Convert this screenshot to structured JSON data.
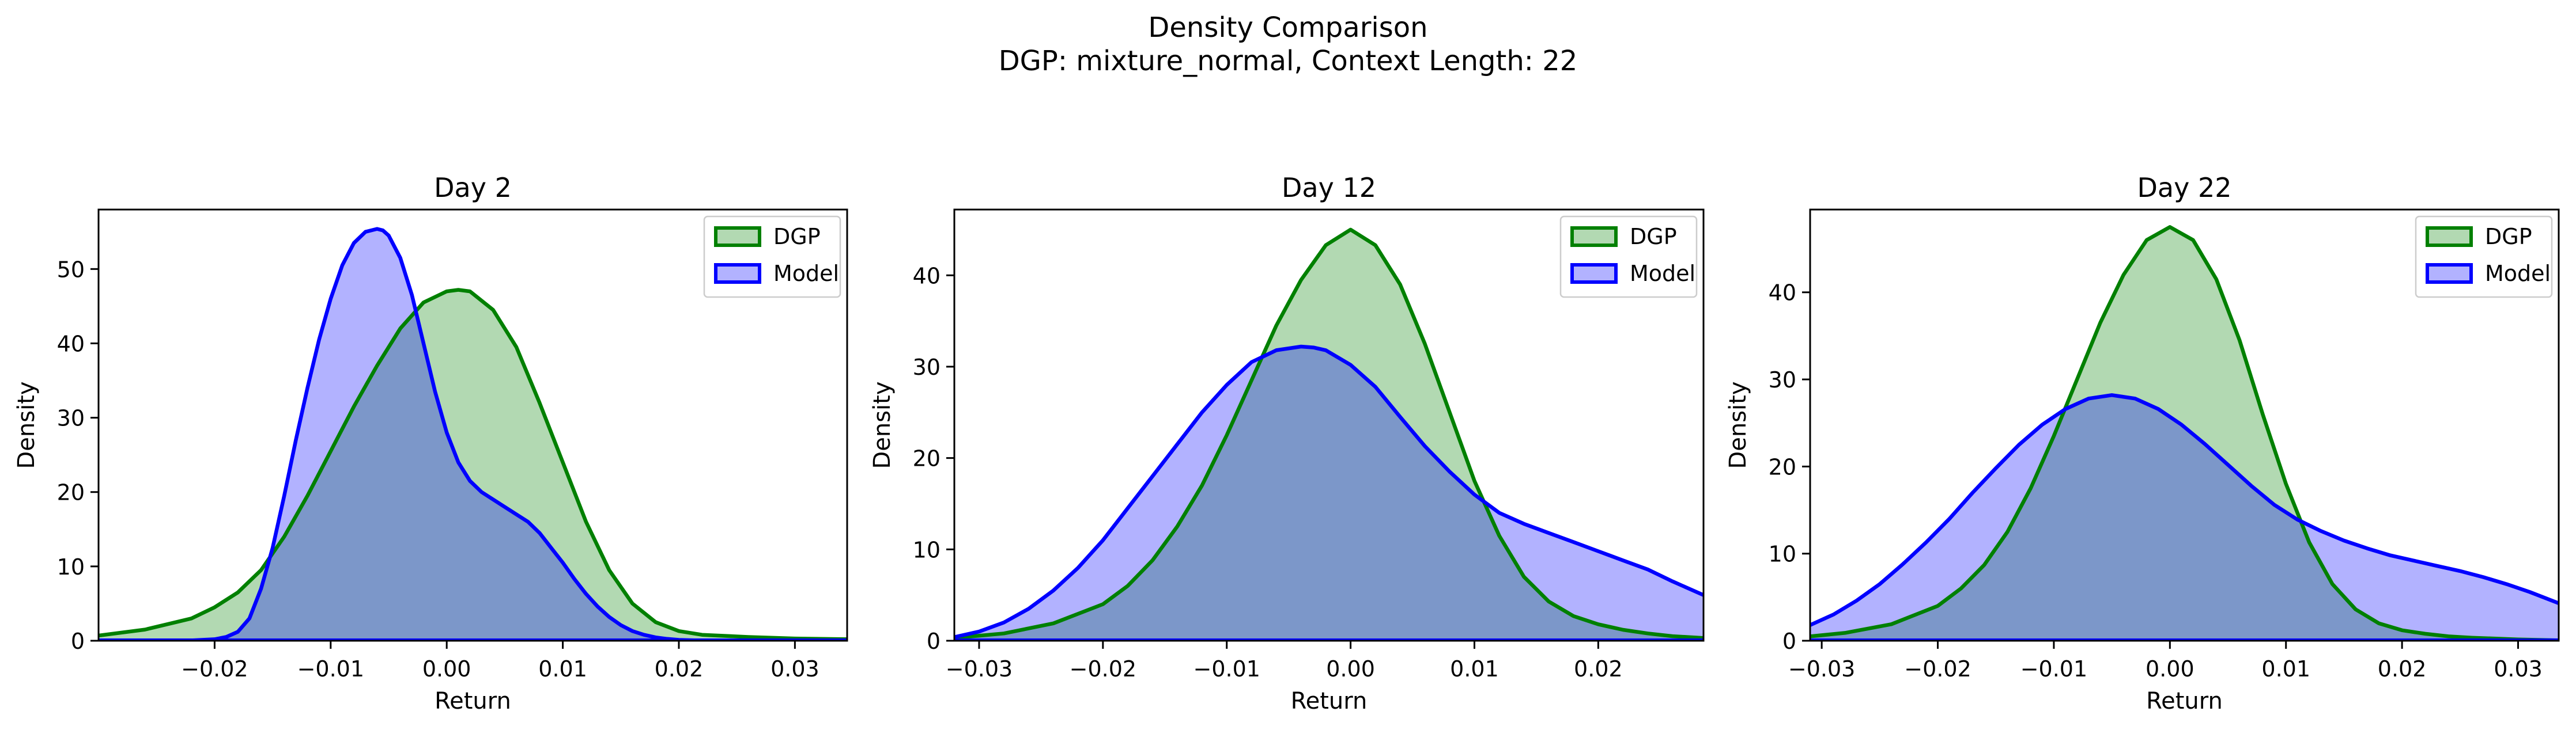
{
  "figure": {
    "title_line1": "Density Comparison",
    "title_line2": "DGP: mixture_normal, Context Length: 22"
  },
  "colors": {
    "dgp_line": "#008000",
    "dgp_fill": "#008000",
    "model_line": "#0000ff",
    "model_fill": "#0000ff"
  },
  "chart_data": [
    {
      "type": "area",
      "title": "Day 2",
      "xlabel": "Return",
      "ylabel": "Density",
      "xlim": [
        -0.03,
        0.0345
      ],
      "ylim": [
        0,
        58
      ],
      "xticks": [
        -0.02,
        -0.01,
        0.0,
        0.01,
        0.02,
        0.03
      ],
      "xtick_labels": [
        "−0.02",
        "−0.01",
        "0.00",
        "0.01",
        "0.02",
        "0.03"
      ],
      "yticks": [
        0,
        10,
        20,
        30,
        40,
        50
      ],
      "grid": false,
      "legend": "upper right",
      "series": [
        {
          "name": "DGP",
          "x": [
            -0.03,
            -0.026,
            -0.022,
            -0.02,
            -0.018,
            -0.016,
            -0.014,
            -0.012,
            -0.01,
            -0.008,
            -0.006,
            -0.004,
            -0.002,
            0.0,
            0.001,
            0.002,
            0.004,
            0.006,
            0.008,
            0.01,
            0.012,
            0.014,
            0.016,
            0.018,
            0.02,
            0.022,
            0.026,
            0.03,
            0.0345
          ],
          "y": [
            0.7,
            1.5,
            3.0,
            4.5,
            6.5,
            9.5,
            14.0,
            19.5,
            25.5,
            31.5,
            37.0,
            42.0,
            45.5,
            47.0,
            47.2,
            47.0,
            44.5,
            39.5,
            32.0,
            24.0,
            16.0,
            9.5,
            5.0,
            2.5,
            1.3,
            0.8,
            0.5,
            0.3,
            0.2
          ]
        },
        {
          "name": "Model",
          "x": [
            -0.03,
            -0.022,
            -0.02,
            -0.019,
            -0.018,
            -0.017,
            -0.016,
            -0.015,
            -0.014,
            -0.013,
            -0.012,
            -0.011,
            -0.01,
            -0.009,
            -0.008,
            -0.007,
            -0.006,
            -0.0055,
            -0.005,
            -0.004,
            -0.003,
            -0.002,
            -0.001,
            0.0,
            0.001,
            0.002,
            0.003,
            0.004,
            0.005,
            0.006,
            0.007,
            0.008,
            0.009,
            0.01,
            0.011,
            0.012,
            0.013,
            0.014,
            0.015,
            0.016,
            0.017,
            0.018,
            0.019,
            0.02,
            0.022,
            0.026,
            0.03,
            0.0345
          ],
          "y": [
            0,
            0.05,
            0.2,
            0.5,
            1.2,
            3.0,
            7.0,
            12.5,
            19.5,
            27.0,
            34.0,
            40.5,
            46.0,
            50.5,
            53.5,
            55.0,
            55.4,
            55.2,
            54.5,
            51.5,
            46.5,
            40.0,
            33.5,
            28.0,
            24.0,
            21.5,
            20.0,
            19.0,
            18.0,
            17.0,
            16.0,
            14.5,
            12.5,
            10.5,
            8.3,
            6.3,
            4.6,
            3.2,
            2.1,
            1.3,
            0.8,
            0.45,
            0.25,
            0.12,
            0.03,
            0,
            0,
            0
          ]
        }
      ]
    },
    {
      "type": "area",
      "title": "Day 12",
      "xlabel": "Return",
      "ylabel": "Density",
      "xlim": [
        -0.032,
        0.0285
      ],
      "ylim": [
        0,
        47.2
      ],
      "xticks": [
        -0.03,
        -0.02,
        -0.01,
        0.0,
        0.01,
        0.02
      ],
      "xtick_labels": [
        "−0.03",
        "−0.02",
        "−0.01",
        "0.00",
        "0.01",
        "0.02"
      ],
      "yticks": [
        0,
        10,
        20,
        30,
        40
      ],
      "grid": false,
      "legend": "upper right",
      "series": [
        {
          "name": "DGP",
          "x": [
            -0.032,
            -0.028,
            -0.024,
            -0.02,
            -0.018,
            -0.016,
            -0.014,
            -0.012,
            -0.01,
            -0.008,
            -0.006,
            -0.004,
            -0.002,
            0.0,
            0.002,
            0.004,
            0.006,
            0.008,
            0.01,
            0.012,
            0.014,
            0.016,
            0.018,
            0.02,
            0.022,
            0.024,
            0.026,
            0.0285
          ],
          "y": [
            0.3,
            0.8,
            1.9,
            4.0,
            6.0,
            8.8,
            12.5,
            17.0,
            22.5,
            28.5,
            34.5,
            39.5,
            43.3,
            45.0,
            43.3,
            39.0,
            32.5,
            25.0,
            17.5,
            11.5,
            7.0,
            4.3,
            2.7,
            1.8,
            1.2,
            0.8,
            0.5,
            0.3
          ]
        },
        {
          "name": "Model",
          "x": [
            -0.032,
            -0.03,
            -0.028,
            -0.026,
            -0.024,
            -0.022,
            -0.02,
            -0.018,
            -0.016,
            -0.014,
            -0.012,
            -0.01,
            -0.008,
            -0.006,
            -0.004,
            -0.003,
            -0.002,
            0.0,
            0.002,
            0.004,
            0.006,
            0.008,
            0.01,
            0.012,
            0.014,
            0.016,
            0.018,
            0.02,
            0.022,
            0.024,
            0.026,
            0.0285
          ],
          "y": [
            0.4,
            1.0,
            2.0,
            3.5,
            5.5,
            8.0,
            11.0,
            14.5,
            18.0,
            21.5,
            25.0,
            28.0,
            30.5,
            31.8,
            32.2,
            32.1,
            31.8,
            30.2,
            27.8,
            24.5,
            21.3,
            18.5,
            16.0,
            14.0,
            12.8,
            11.8,
            10.8,
            9.8,
            8.8,
            7.8,
            6.5,
            5.0
          ]
        }
      ]
    },
    {
      "type": "area",
      "title": "Day 22",
      "xlabel": "Return",
      "ylabel": "Density",
      "xlim": [
        -0.031,
        0.0335
      ],
      "ylim": [
        0,
        49.5
      ],
      "xticks": [
        -0.03,
        -0.02,
        -0.01,
        0.0,
        0.01,
        0.02,
        0.03
      ],
      "xtick_labels": [
        "−0.03",
        "−0.02",
        "−0.01",
        "0.00",
        "0.01",
        "0.02",
        "0.03"
      ],
      "yticks": [
        0,
        10,
        20,
        30,
        40
      ],
      "grid": false,
      "legend": "upper right",
      "series": [
        {
          "name": "DGP",
          "x": [
            -0.031,
            -0.028,
            -0.024,
            -0.02,
            -0.018,
            -0.016,
            -0.014,
            -0.012,
            -0.01,
            -0.008,
            -0.006,
            -0.004,
            -0.002,
            0.0,
            0.002,
            0.004,
            0.006,
            0.008,
            0.01,
            0.012,
            0.014,
            0.016,
            0.018,
            0.02,
            0.022,
            0.024,
            0.026,
            0.03,
            0.0335
          ],
          "y": [
            0.5,
            0.9,
            1.9,
            4.0,
            6.0,
            8.7,
            12.5,
            17.5,
            23.5,
            30.0,
            36.5,
            42.0,
            46.0,
            47.5,
            46.0,
            41.5,
            34.5,
            26.0,
            18.0,
            11.3,
            6.5,
            3.6,
            2.0,
            1.2,
            0.8,
            0.5,
            0.35,
            0.15,
            0.05
          ]
        },
        {
          "name": "Model",
          "x": [
            -0.031,
            -0.029,
            -0.027,
            -0.025,
            -0.023,
            -0.021,
            -0.019,
            -0.017,
            -0.015,
            -0.013,
            -0.011,
            -0.009,
            -0.007,
            -0.005,
            -0.003,
            -0.001,
            0.001,
            0.003,
            0.005,
            0.007,
            0.009,
            0.011,
            0.013,
            0.015,
            0.017,
            0.019,
            0.021,
            0.023,
            0.025,
            0.027,
            0.029,
            0.031,
            0.0335
          ],
          "y": [
            1.8,
            3.0,
            4.6,
            6.5,
            8.8,
            11.3,
            14.0,
            17.0,
            19.8,
            22.5,
            24.8,
            26.6,
            27.8,
            28.2,
            27.8,
            26.6,
            24.8,
            22.6,
            20.2,
            17.8,
            15.6,
            13.9,
            12.6,
            11.5,
            10.6,
            9.8,
            9.2,
            8.6,
            8.0,
            7.3,
            6.5,
            5.6,
            4.3
          ]
        }
      ]
    }
  ]
}
